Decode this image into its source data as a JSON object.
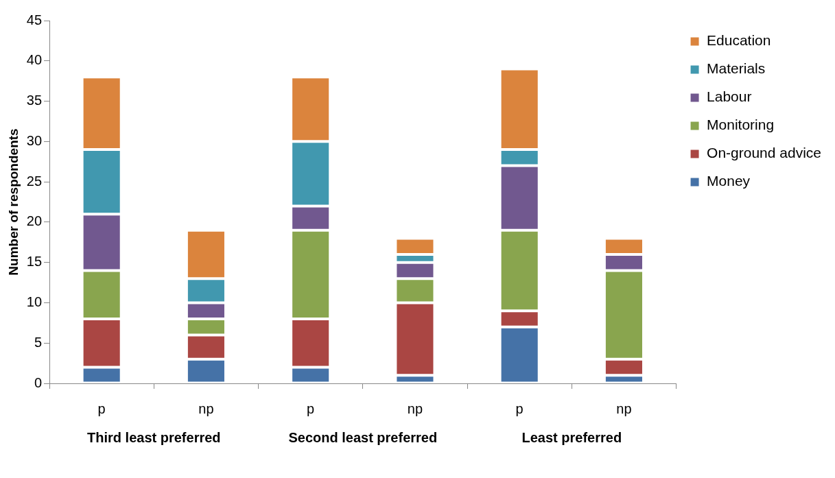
{
  "chart_data": {
    "type": "bar",
    "stacked": true,
    "ylabel": "Number of respondents",
    "categories": [
      "p",
      "np",
      "p",
      "np",
      "p",
      "np"
    ],
    "series": [
      {
        "name": "Money",
        "color": "#4572a7",
        "values": [
          2,
          3,
          2,
          1,
          7,
          1
        ]
      },
      {
        "name": "On-ground advice",
        "color": "#aa4643",
        "values": [
          6,
          3,
          6,
          9,
          2,
          2
        ]
      },
      {
        "name": "Monitoring",
        "color": "#89a54e",
        "values": [
          6,
          2,
          11,
          3,
          10,
          11
        ]
      },
      {
        "name": "Labour",
        "color": "#71588f",
        "values": [
          7,
          2,
          3,
          2,
          8,
          2
        ]
      },
      {
        "name": "Materials",
        "color": "#4198af",
        "values": [
          8,
          3,
          8,
          1,
          2,
          0
        ]
      },
      {
        "name": "Education",
        "color": "#db843d",
        "values": [
          9,
          6,
          8,
          2,
          10,
          2
        ]
      }
    ],
    "ylim": [
      0,
      45
    ],
    "yticks": [
      0,
      5,
      10,
      15,
      20,
      25,
      30,
      35,
      40,
      45
    ],
    "grid": false,
    "legend": "top right",
    "annotations": [
      "Third least preferred",
      "Second least preferred",
      "Least preferred"
    ]
  }
}
